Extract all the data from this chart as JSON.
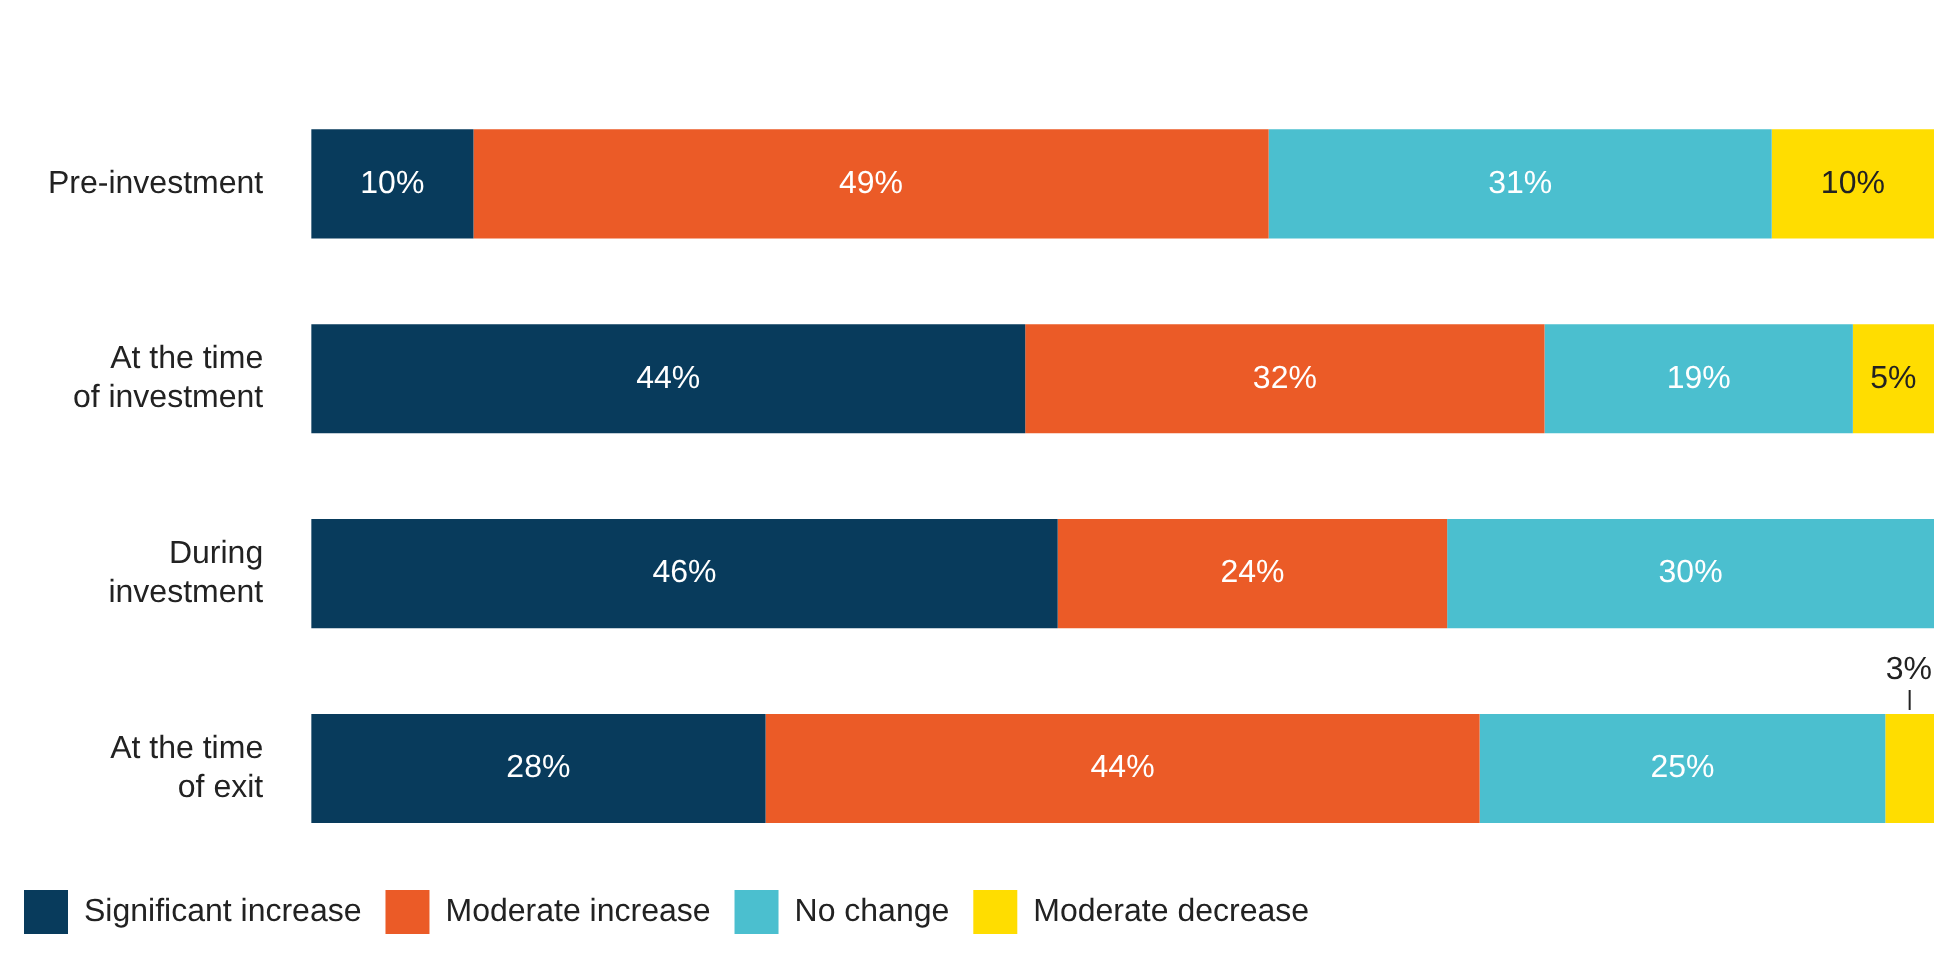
{
  "chart_data": {
    "type": "bar",
    "orientation": "horizontal",
    "stacked": true,
    "categories": [
      "Pre-investment",
      "At the time of investment",
      "During investment",
      "At the time of exit"
    ],
    "series": [
      {
        "name": "Significant increase",
        "color": "#083b5c",
        "values": [
          10,
          44,
          46,
          28
        ],
        "value_labels": [
          "10%",
          "44%",
          "46%",
          "28%"
        ]
      },
      {
        "name": "Moderate increase",
        "color": "#eb5b27",
        "values": [
          49,
          32,
          24,
          44
        ],
        "value_labels": [
          "49%",
          "32%",
          "24%",
          "44%"
        ]
      },
      {
        "name": "No change",
        "color": "#4bbfcf",
        "values": [
          31,
          19,
          30,
          25
        ],
        "value_labels": [
          "31%",
          "19%",
          "30%",
          "25%"
        ]
      },
      {
        "name": "Moderate decrease",
        "color": "#ffdd00",
        "values": [
          10,
          5,
          null,
          3
        ],
        "value_labels": [
          "10%",
          "5%",
          null,
          "3%"
        ]
      }
    ],
    "tick_labels": "y",
    "legend": "bottom left",
    "grid": false
  }
}
